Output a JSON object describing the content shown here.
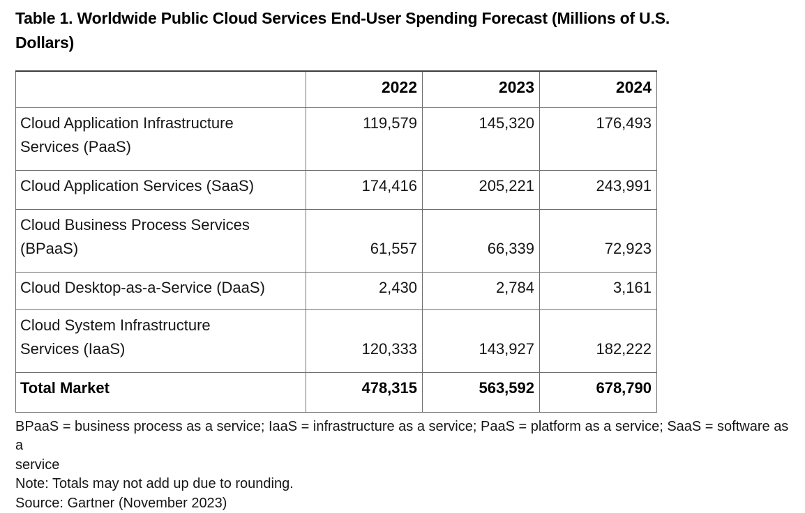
{
  "header": {
    "title": "Table 1. Worldwide Public Cloud Services End-User Spending Forecast (Millions of U.S.\nDollars)"
  },
  "table": {
    "columns": [
      "",
      "2022",
      "2023",
      "2024"
    ],
    "rows": [
      {
        "label": "Cloud Application Infrastructure\nServices (PaaS)",
        "values": [
          "119,579",
          "145,320",
          "176,493"
        ]
      },
      {
        "label": "Cloud Application Services (SaaS)",
        "values": [
          "174,416",
          "205,221",
          "243,991"
        ]
      },
      {
        "label": "Cloud Business Process Services\n(BPaaS)",
        "values": [
          "61,557",
          "66,339",
          "72,923"
        ]
      },
      {
        "label": "Cloud Desktop-as-a-Service (DaaS)",
        "values": [
          "2,430",
          "2,784",
          "3,161"
        ]
      },
      {
        "label": "Cloud System Infrastructure\nServices (IaaS)",
        "values": [
          "120,333",
          "143,927",
          "182,222"
        ]
      },
      {
        "label": "Total Market",
        "values": [
          "478,315",
          "563,592",
          "678,790"
        ]
      }
    ]
  },
  "footnotes": {
    "abbreviations": "BPaaS = business process as a service; IaaS = infrastructure as a service; PaaS = platform as a service; SaaS = software as a\nservice",
    "note": "Note: Totals may not add up due to rounding.",
    "source": "Source: Gartner (November 2023)"
  },
  "colors": {
    "text": "#161616",
    "title": "#000000",
    "border_outer_top": "#3d3d3d",
    "border_inner": "#6f6f6f",
    "background": "#ffffff"
  },
  "chart_data": {
    "type": "table",
    "title": "Table 1. Worldwide Public Cloud Services End-User Spending Forecast (Millions of U.S. Dollars)",
    "columns": [
      "2022",
      "2023",
      "2024"
    ],
    "rows": [
      {
        "category": "Cloud Application Infrastructure Services (PaaS)",
        "values": [
          119579,
          145320,
          176493
        ]
      },
      {
        "category": "Cloud Application Services (SaaS)",
        "values": [
          174416,
          205221,
          243991
        ]
      },
      {
        "category": "Cloud Business Process Services (BPaaS)",
        "values": [
          61557,
          66339,
          72923
        ]
      },
      {
        "category": "Cloud Desktop-as-a-Service (DaaS)",
        "values": [
          2430,
          2784,
          3161
        ]
      },
      {
        "category": "Cloud System Infrastructure Services (IaaS)",
        "values": [
          120333,
          143927,
          182222
        ]
      },
      {
        "category": "Total Market",
        "values": [
          478315,
          563592,
          678790
        ]
      }
    ],
    "source": "Gartner (November 2023)"
  }
}
